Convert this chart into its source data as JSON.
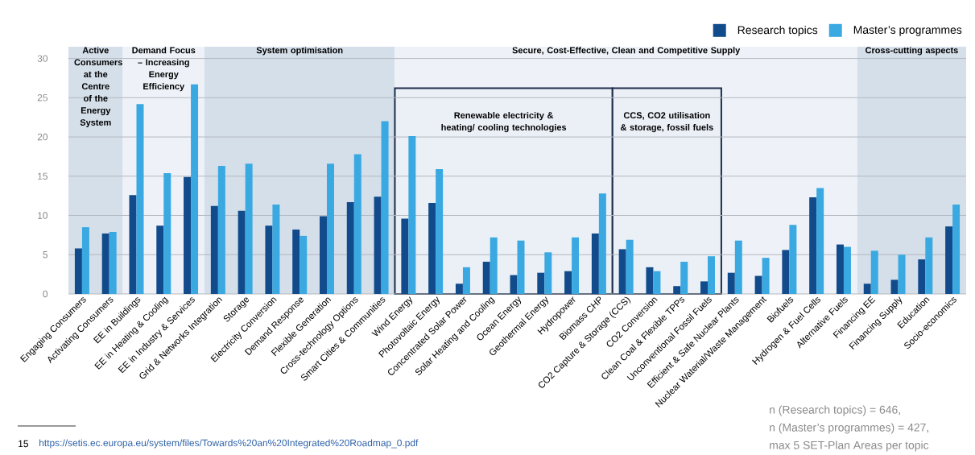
{
  "chart_data": {
    "type": "bar",
    "categories": [
      "Engaging Consumers",
      "Activating Consumers",
      "EE in Buildings",
      "EE in Heating & Cooling",
      "EE in Industry & Services",
      "Grid & Networks Integration",
      "Storage",
      "Electricity Conversion",
      "Demand Response",
      "Flexible Generation",
      "Cross-technology Options",
      "Smart Cities & Communities",
      "Wind Energy",
      "Photovoltaic Energy",
      "Concentrated Solar Power",
      "Solar Heating and Cooling",
      "Ocean Energy",
      "Geothermal Energy",
      "Hydropower",
      "Biomass CHP",
      "CO2 Capture & Storage (CCS)",
      "CO2 Conversion",
      "Clean Coal & Flexible TPPs",
      "Unconventional Fossil Fuels",
      "Efficient & Safe Nuclear Plants",
      "Nuclear Waterial/Waste Management",
      "Biofuels",
      "Hydrogen & Fuel Cells",
      "Alternative Fuels",
      "Financing EE",
      "Financing Supply",
      "Education",
      "Socio-economics"
    ],
    "series": [
      {
        "name": "Research topics",
        "color": "#124b8b",
        "values": [
          5.8,
          7.7,
          12.6,
          8.7,
          14.9,
          11.2,
          10.6,
          8.7,
          8.2,
          9.9,
          11.7,
          12.4,
          9.6,
          11.6,
          1.3,
          4.1,
          2.4,
          2.7,
          2.9,
          7.7,
          5.7,
          3.4,
          1.0,
          1.6,
          2.7,
          2.3,
          5.6,
          12.3,
          6.3,
          1.3,
          1.8,
          4.4,
          8.6
        ]
      },
      {
        "name": "Master’s programmes",
        "color": "#3aa9e1",
        "values": [
          8.5,
          7.9,
          24.2,
          15.4,
          26.7,
          16.3,
          16.6,
          11.4,
          7.4,
          16.6,
          17.8,
          22.0,
          20.1,
          15.9,
          3.4,
          7.2,
          6.8,
          5.3,
          7.2,
          12.8,
          6.9,
          2.9,
          4.1,
          4.8,
          6.8,
          4.6,
          8.8,
          13.5,
          6.0,
          5.5,
          5.0,
          7.2,
          11.4
        ]
      }
    ],
    "ylim": [
      0,
      31.5
    ],
    "yticks": [
      0,
      5,
      10,
      15,
      20,
      25,
      30
    ],
    "grid": "y",
    "legend": "top right",
    "bands": [
      {
        "axis": "x",
        "from": "Engaging Consumers",
        "to": "Activating Consumers",
        "label": "Active Consumers at the Centre of the Energy System",
        "color": "#d5dfea"
      },
      {
        "axis": "x",
        "from": "EE in Buildings",
        "to": "EE in Industry & Services",
        "label": "Demand Focus – Increasing Energy Efficiency",
        "color": "#eef2f8"
      },
      {
        "axis": "x",
        "from": "Grid & Networks Integration",
        "to": "Smart Cities & Communities",
        "label": "System optimisation",
        "color": "#d5dfea"
      },
      {
        "axis": "x",
        "from": "Wind Energy",
        "to": "Alternative Fuels",
        "label": "Secure, Cost-Effective, Clean and Competitive Supply",
        "color": "#eef2f8"
      },
      {
        "axis": "x",
        "from": "Financing EE",
        "to": "Socio-economics",
        "label": "Cross-cutting aspects",
        "color": "#d5dfea"
      },
      {
        "axis": "x",
        "from": "Wind Energy",
        "to": "Biomass CHP",
        "label": "Renewable electricity & heating/ cooling technologies",
        "color": "#ebf0f7"
      },
      {
        "axis": "x",
        "from": "CO2 Capture & Storage (CCS)",
        "to": "Unconventional Fossil Fuels",
        "label": "CCS, CO2 utilisation & storage, fossil fuels",
        "color": "#ebf0f7"
      }
    ],
    "annotations": [
      "15",
      "https://setis.ec.europa.eu/system/files/Towards%20an%20Integrated%20Roadmap_0.pdf",
      "n (Research topics) = 646,",
      "n (Master’s programmes) = 427,",
      "max 5 SET-Plan Areas per topic"
    ]
  }
}
